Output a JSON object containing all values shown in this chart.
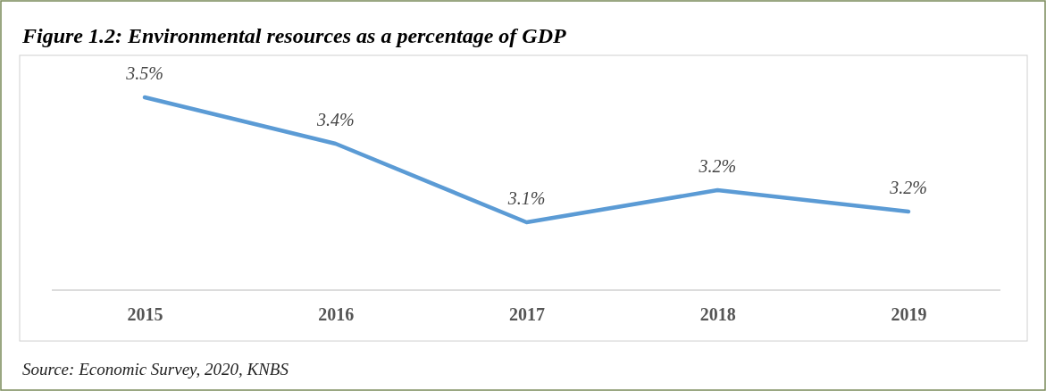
{
  "chart_data": {
    "type": "line",
    "title": "Figure 1.2: Environmental resources as a percentage of GDP",
    "categories": [
      "2015",
      "2016",
      "2017",
      "2018",
      "2019"
    ],
    "series": [
      {
        "color": "#5b9bd5",
        "values": [
          3.49,
          3.36,
          3.14,
          3.23,
          3.17
        ],
        "value_labels": [
          "3.5%",
          "3.4%",
          "3.1%",
          "3.2%",
          "3.2%"
        ]
      }
    ],
    "ylim": [
      2.95,
      3.6
    ],
    "tick_labels": "x",
    "marker": "none",
    "line_style": "solid",
    "annotations": [
      "Source: Economic Survey, 2020, KNBS"
    ]
  }
}
